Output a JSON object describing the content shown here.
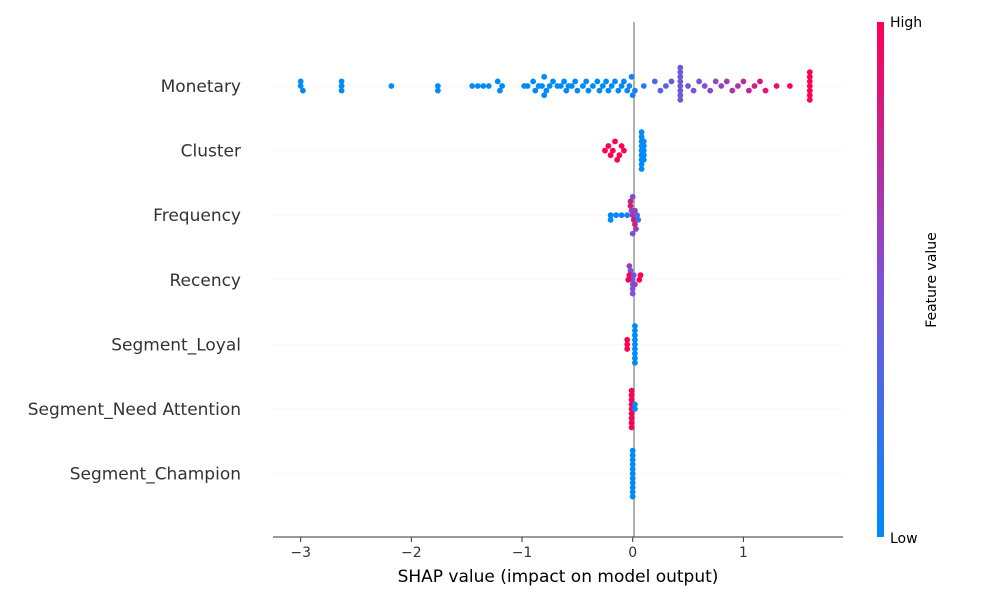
{
  "chart_data": {
    "type": "scatter",
    "subtype": "shap-beeswarm",
    "xlabel": "SHAP value (impact on model output)",
    "xlim": [
      -3.25,
      1.9
    ],
    "xticks": [
      {
        "value": -3,
        "label": "−3"
      },
      {
        "value": -2,
        "label": "−2"
      },
      {
        "value": -1,
        "label": "−1"
      },
      {
        "value": 0,
        "label": "0"
      },
      {
        "value": 1,
        "label": "1"
      }
    ],
    "colorbar": {
      "label": "Feature value",
      "high_label": "High",
      "low_label": "Low",
      "low_color": "#008bfb",
      "mid_color": "#7f50d8",
      "high_color": "#ff0052"
    },
    "colors": {
      "zero_line": "#999999",
      "row_line": "#e6e6e6",
      "axis": "#333333"
    },
    "features": [
      {
        "name": "Monetary",
        "points": [
          [
            -3.0,
            0,
            0
          ],
          [
            -3.0,
            0,
            -1
          ],
          [
            -2.98,
            0,
            1
          ],
          [
            -2.63,
            0,
            0
          ],
          [
            -2.63,
            0,
            1
          ],
          [
            -2.63,
            0,
            -1
          ],
          [
            -2.18,
            0,
            0
          ],
          [
            -1.76,
            0,
            0
          ],
          [
            -1.76,
            0,
            1
          ],
          [
            -1.45,
            0,
            0
          ],
          [
            -1.4,
            0,
            0
          ],
          [
            -1.35,
            0,
            0
          ],
          [
            -1.3,
            0,
            0
          ],
          [
            -1.22,
            0,
            -1
          ],
          [
            -1.2,
            0,
            1
          ],
          [
            -1.18,
            0,
            0
          ],
          [
            -0.98,
            0,
            0
          ],
          [
            -0.95,
            0,
            0
          ],
          [
            -0.9,
            0,
            -1
          ],
          [
            -0.88,
            0,
            1
          ],
          [
            -0.85,
            0,
            0
          ],
          [
            -0.82,
            0,
            0
          ],
          [
            -0.8,
            0,
            -2
          ],
          [
            -0.8,
            0,
            2
          ],
          [
            -0.78,
            0,
            1
          ],
          [
            -0.75,
            0,
            0
          ],
          [
            -0.72,
            0,
            -1
          ],
          [
            -0.68,
            0,
            0
          ],
          [
            -0.65,
            0,
            0
          ],
          [
            -0.62,
            0,
            -1
          ],
          [
            -0.6,
            0,
            1
          ],
          [
            -0.58,
            0,
            0
          ],
          [
            -0.55,
            0,
            0
          ],
          [
            -0.52,
            0,
            -1
          ],
          [
            -0.5,
            0,
            1
          ],
          [
            -0.45,
            0,
            0
          ],
          [
            -0.42,
            0,
            -1
          ],
          [
            -0.4,
            0,
            1
          ],
          [
            -0.36,
            0,
            0
          ],
          [
            -0.32,
            0,
            -1
          ],
          [
            -0.3,
            0,
            1
          ],
          [
            -0.27,
            0,
            0
          ],
          [
            -0.24,
            0,
            -1
          ],
          [
            -0.22,
            0,
            1
          ],
          [
            -0.19,
            0,
            0
          ],
          [
            -0.16,
            0,
            -1
          ],
          [
            -0.13,
            0,
            1
          ],
          [
            -0.1,
            0,
            0
          ],
          [
            -0.08,
            0.05,
            -1
          ],
          [
            -0.05,
            0.05,
            1
          ],
          [
            -0.03,
            0.05,
            0
          ],
          [
            -0.01,
            0.05,
            -2
          ],
          [
            0.0,
            0.05,
            2
          ],
          [
            0.02,
            0.1,
            1
          ],
          [
            0.1,
            0.15,
            0
          ],
          [
            0.2,
            0.3,
            -1
          ],
          [
            0.25,
            0.35,
            1
          ],
          [
            0.3,
            0.35,
            0
          ],
          [
            0.35,
            0.4,
            -1
          ],
          [
            0.43,
            0.42,
            -4
          ],
          [
            0.43,
            0.42,
            -3
          ],
          [
            0.43,
            0.42,
            -2
          ],
          [
            0.43,
            0.42,
            -1
          ],
          [
            0.43,
            0.42,
            0
          ],
          [
            0.43,
            0.42,
            1
          ],
          [
            0.43,
            0.42,
            2
          ],
          [
            0.43,
            0.42,
            3
          ],
          [
            0.5,
            0.45,
            0
          ],
          [
            0.55,
            0.48,
            1
          ],
          [
            0.6,
            0.5,
            -1
          ],
          [
            0.65,
            0.52,
            0
          ],
          [
            0.7,
            0.55,
            1
          ],
          [
            0.75,
            0.58,
            -1
          ],
          [
            0.8,
            0.6,
            0
          ],
          [
            0.85,
            0.63,
            -1
          ],
          [
            0.9,
            0.66,
            1
          ],
          [
            0.95,
            0.7,
            0
          ],
          [
            1.0,
            0.73,
            -1
          ],
          [
            1.05,
            0.76,
            1
          ],
          [
            1.1,
            0.8,
            0
          ],
          [
            1.15,
            0.84,
            -1
          ],
          [
            1.2,
            0.88,
            1
          ],
          [
            1.3,
            0.92,
            0
          ],
          [
            1.42,
            0.96,
            0
          ],
          [
            1.6,
            1,
            -3
          ],
          [
            1.6,
            1,
            -2
          ],
          [
            1.6,
            1,
            -1
          ],
          [
            1.6,
            1,
            0
          ],
          [
            1.6,
            1,
            1
          ],
          [
            1.6,
            1,
            2
          ],
          [
            1.6,
            1,
            3
          ]
        ]
      },
      {
        "name": "Cluster",
        "points": [
          [
            -0.25,
            1,
            0
          ],
          [
            -0.22,
            1,
            -1
          ],
          [
            -0.2,
            1,
            1
          ],
          [
            -0.18,
            1,
            0
          ],
          [
            -0.16,
            1,
            -2
          ],
          [
            -0.14,
            1,
            2
          ],
          [
            -0.12,
            1,
            1
          ],
          [
            -0.1,
            1,
            -1
          ],
          [
            -0.08,
            1,
            0
          ],
          [
            0.08,
            0,
            -4
          ],
          [
            0.08,
            0,
            -3
          ],
          [
            0.08,
            0,
            -2
          ],
          [
            0.08,
            0,
            -1
          ],
          [
            0.08,
            0,
            0
          ],
          [
            0.08,
            0,
            1
          ],
          [
            0.08,
            0,
            2
          ],
          [
            0.08,
            0,
            3
          ],
          [
            0.08,
            0,
            4
          ],
          [
            0.1,
            0,
            -2
          ],
          [
            0.1,
            0,
            -1
          ],
          [
            0.1,
            0,
            0
          ],
          [
            0.1,
            0,
            1
          ],
          [
            0.1,
            0,
            2
          ]
        ]
      },
      {
        "name": "Frequency",
        "points": [
          [
            -0.2,
            0,
            0
          ],
          [
            -0.2,
            0,
            1
          ],
          [
            -0.15,
            0.05,
            0
          ],
          [
            -0.1,
            0.05,
            0
          ],
          [
            -0.05,
            0.1,
            0
          ],
          [
            -0.02,
            0.8,
            -3
          ],
          [
            -0.02,
            0.8,
            -2
          ],
          [
            -0.01,
            0.6,
            -1
          ],
          [
            0.0,
            0.7,
            0
          ],
          [
            0.01,
            0.9,
            1
          ],
          [
            0.02,
            0.8,
            2
          ],
          [
            0.03,
            0.6,
            3
          ],
          [
            0.0,
            0.5,
            -4
          ],
          [
            0.0,
            0.5,
            4
          ],
          [
            0.02,
            0.6,
            -1
          ],
          [
            0.04,
            0.3,
            0
          ],
          [
            0.05,
            0.2,
            1
          ]
        ]
      },
      {
        "name": "Recency",
        "points": [
          [
            -0.03,
            0.6,
            -3
          ],
          [
            -0.02,
            0.5,
            -2
          ],
          [
            -0.01,
            0.5,
            -1
          ],
          [
            0.0,
            0.4,
            0
          ],
          [
            0.0,
            0.4,
            1
          ],
          [
            0.0,
            0.5,
            2
          ],
          [
            0.0,
            0.5,
            3
          ],
          [
            -0.04,
            1,
            0
          ],
          [
            -0.03,
            1,
            -1
          ],
          [
            0.06,
            1,
            0
          ],
          [
            0.07,
            1,
            -1
          ],
          [
            0.02,
            0.6,
            1
          ],
          [
            0.01,
            0.4,
            -1
          ]
        ]
      },
      {
        "name": "Segment_Loyal",
        "points": [
          [
            -0.05,
            1,
            0
          ],
          [
            -0.05,
            1,
            1
          ],
          [
            -0.05,
            1,
            -1
          ],
          [
            0.02,
            0,
            -4
          ],
          [
            0.02,
            0,
            -3
          ],
          [
            0.02,
            0,
            -2
          ],
          [
            0.02,
            0,
            -1
          ],
          [
            0.02,
            0,
            0
          ],
          [
            0.02,
            0,
            1
          ],
          [
            0.02,
            0,
            2
          ],
          [
            0.02,
            0,
            3
          ],
          [
            0.02,
            0,
            4
          ]
        ]
      },
      {
        "name": "Segment_Need Attention",
        "points": [
          [
            -0.01,
            1,
            -4
          ],
          [
            -0.01,
            1,
            -3
          ],
          [
            -0.01,
            1,
            -2
          ],
          [
            -0.01,
            1,
            -1
          ],
          [
            -0.01,
            1,
            0
          ],
          [
            -0.01,
            1,
            1
          ],
          [
            -0.01,
            1,
            2
          ],
          [
            -0.01,
            1,
            3
          ],
          [
            -0.01,
            1,
            4
          ],
          [
            0.02,
            0,
            0
          ],
          [
            0.02,
            0,
            -1
          ]
        ]
      },
      {
        "name": "Segment_Champion",
        "points": [
          [
            0.0,
            0,
            -4
          ],
          [
            0.0,
            0,
            -3
          ],
          [
            0.0,
            0,
            -2
          ],
          [
            0.0,
            0,
            -1
          ],
          [
            0.0,
            0,
            0
          ],
          [
            0.0,
            0,
            1
          ],
          [
            0.0,
            0,
            2
          ],
          [
            0.0,
            0,
            3
          ],
          [
            0.0,
            0,
            4
          ],
          [
            0.0,
            0,
            -5
          ],
          [
            0.0,
            0,
            5
          ]
        ]
      }
    ]
  }
}
